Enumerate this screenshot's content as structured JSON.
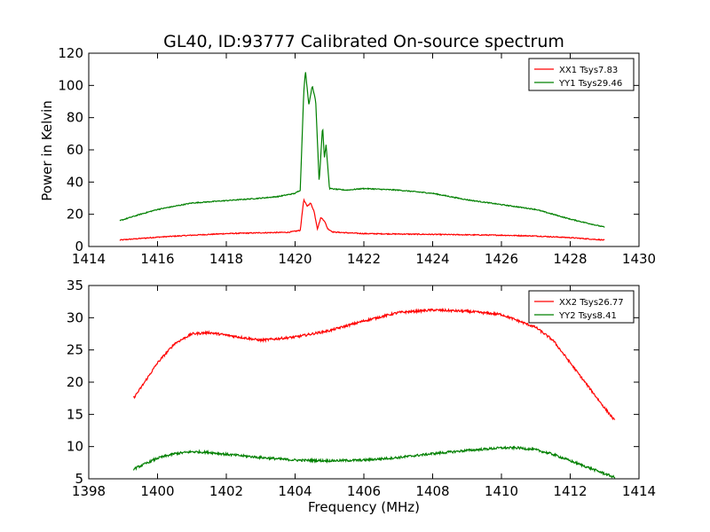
{
  "figure": {
    "title": "GL40, ID:93777 Calibrated On-source spectrum",
    "ylabel": "Power in Kelvin",
    "xlabel": "Frequency (MHz)"
  },
  "colors": {
    "red": "#ff0000",
    "green": "#008000",
    "axis": "#000000"
  },
  "chart_data": [
    {
      "type": "line",
      "title": "GL40, ID:93777 Calibrated On-source spectrum",
      "ylabel": "Power in Kelvin",
      "xlabel": "",
      "xlim": [
        1414,
        1430
      ],
      "ylim": [
        0,
        120
      ],
      "xticks": [
        "1414",
        "1416",
        "1418",
        "1420",
        "1422",
        "1424",
        "1426",
        "1428",
        "1430"
      ],
      "yticks": [
        "0",
        "20",
        "40",
        "60",
        "80",
        "100",
        "120"
      ],
      "legend_position": "top-right",
      "grid": false,
      "series": [
        {
          "name": "XX1 Tsys7.83",
          "color": "#ff0000",
          "x": [
            1414.9,
            1416,
            1417,
            1418,
            1419,
            1419.8,
            1420.15,
            1420.25,
            1420.35,
            1420.45,
            1420.55,
            1420.65,
            1420.75,
            1420.85,
            1420.95,
            1421.1,
            1421.5,
            1422,
            1424,
            1426,
            1427,
            1428,
            1429
          ],
          "y": [
            4,
            5.8,
            7,
            8,
            8.5,
            8.8,
            10,
            29,
            25,
            27,
            22,
            11,
            18,
            16,
            11,
            9,
            8.5,
            8,
            7.5,
            7,
            6.5,
            5.5,
            4
          ]
        },
        {
          "name": "YY1 Tsys29.46",
          "color": "#008000",
          "x": [
            1414.9,
            1415.5,
            1416,
            1417,
            1418,
            1419,
            1419.5,
            1420,
            1420.15,
            1420.25,
            1420.3,
            1420.4,
            1420.5,
            1420.6,
            1420.7,
            1420.8,
            1420.85,
            1420.9,
            1421,
            1421.2,
            1421.5,
            1422,
            1423,
            1424,
            1425,
            1426,
            1427,
            1428,
            1429
          ],
          "y": [
            16,
            20,
            23,
            27,
            28.5,
            30,
            31,
            33,
            35,
            95,
            109,
            88,
            100,
            90,
            40,
            75,
            55,
            63,
            36,
            35.5,
            35,
            36,
            35,
            33,
            29,
            26,
            23,
            17,
            12
          ]
        }
      ]
    },
    {
      "type": "line",
      "title": "",
      "ylabel": "",
      "xlabel": "Frequency (MHz)",
      "xlim": [
        1398,
        1414
      ],
      "ylim": [
        5,
        35
      ],
      "xticks": [
        "1398",
        "1400",
        "1402",
        "1404",
        "1406",
        "1408",
        "1410",
        "1412",
        "1414"
      ],
      "yticks": [
        "5",
        "10",
        "15",
        "20",
        "25",
        "30",
        "35"
      ],
      "legend_position": "top-right",
      "grid": false,
      "series": [
        {
          "name": "XX2 Tsys26.77",
          "color": "#ff0000",
          "x": [
            1399.3,
            1399.5,
            1400,
            1400.5,
            1401,
            1401.5,
            1402,
            1403,
            1404,
            1405,
            1406,
            1407,
            1408,
            1409,
            1410,
            1411,
            1411.5,
            1412,
            1412.5,
            1413,
            1413.3
          ],
          "y": [
            17.5,
            19,
            23,
            26,
            27.5,
            27.7,
            27.3,
            26.5,
            27,
            28,
            29.5,
            30.8,
            31.2,
            31,
            30.5,
            28.5,
            26.5,
            23,
            19.5,
            16,
            14
          ]
        },
        {
          "name": "YY2 Tsys8.41",
          "color": "#008000",
          "x": [
            1399.3,
            1400,
            1400.5,
            1401,
            1401.5,
            1402,
            1403,
            1404,
            1405,
            1406,
            1407,
            1408,
            1409,
            1410,
            1410.5,
            1411,
            1411.5,
            1412,
            1412.5,
            1413,
            1413.3
          ],
          "y": [
            6.5,
            8.2,
            8.9,
            9.2,
            9.1,
            8.8,
            8.3,
            7.9,
            7.8,
            7.9,
            8.3,
            8.9,
            9.4,
            9.8,
            9.8,
            9.5,
            8.8,
            7.8,
            6.8,
            5.8,
            5.2
          ]
        }
      ]
    }
  ]
}
